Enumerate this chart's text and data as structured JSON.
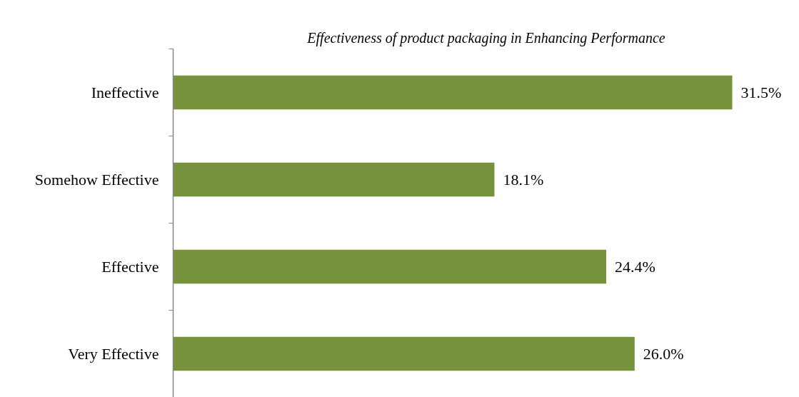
{
  "chart_data": {
    "type": "bar",
    "orientation": "horizontal",
    "title": "Effectiveness of product packaging in Enhancing Performance",
    "categories": [
      "Ineffective",
      "Somehow Effective",
      "Effective",
      "Very Effective"
    ],
    "values": [
      31.5,
      18.1,
      24.4,
      26.0
    ],
    "value_labels": [
      "31.5%",
      "18.1%",
      "24.4%",
      "26.0%"
    ],
    "color": "#76923c",
    "grid": false
  }
}
